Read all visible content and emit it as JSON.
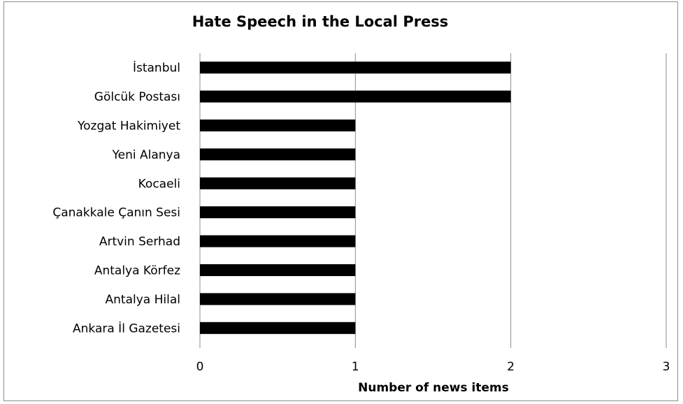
{
  "chart_data": {
    "type": "bar",
    "orientation": "horizontal",
    "title": "Hate Speech in the Local Press",
    "xlabel": "Number of news items",
    "ylabel": "",
    "categories": [
      "İstanbul",
      "Gölcük Postası",
      "Yozgat Hakimiyet",
      "Yeni Alanya",
      "Kocaeli",
      "Çanakkale Çanın Sesi",
      "Artvin Serhad",
      "Antalya Körfez",
      "Antalya Hilal",
      "Ankara İl Gazetesi"
    ],
    "values": [
      2,
      2,
      1,
      1,
      1,
      1,
      1,
      1,
      1,
      1
    ],
    "xlim": [
      0,
      3
    ],
    "xticks": [
      "0",
      "1",
      "2",
      "3"
    ],
    "grid": "vertical",
    "legend": "none",
    "bar_color": "#000000",
    "grid_color": "#8c8c8c"
  }
}
